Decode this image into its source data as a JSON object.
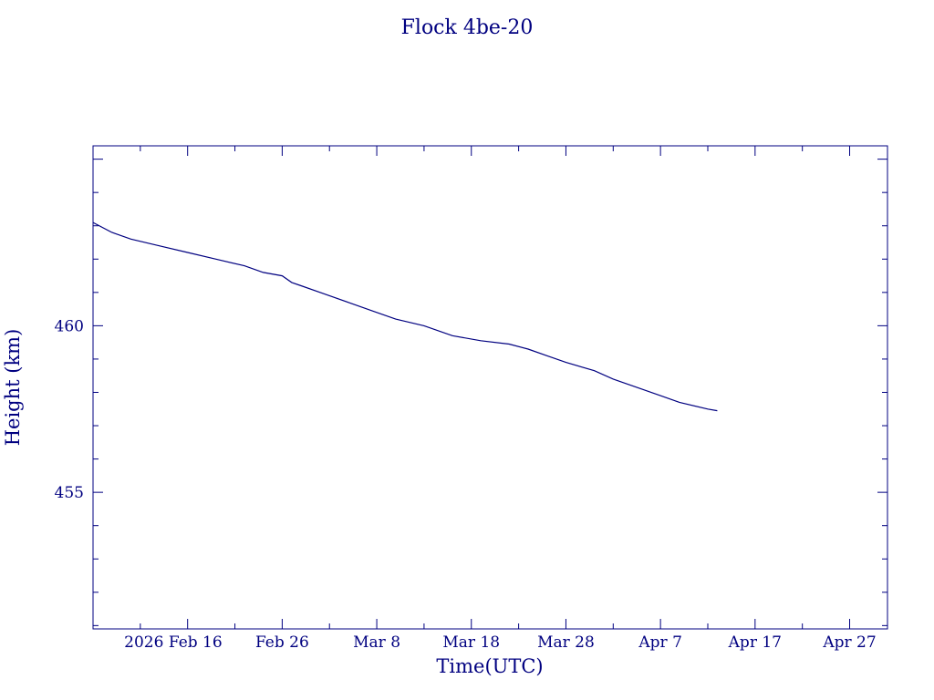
{
  "chart_data": {
    "type": "line",
    "title": "Flock 4be-20",
    "xlabel": "Time(UTC)",
    "ylabel": "Height (km)",
    "x_ticks": [
      "2026 Feb 16",
      "Feb 26",
      "Mar  8",
      "Mar 18",
      "Mar 28",
      "Apr  7",
      "Apr 17",
      "Apr 27"
    ],
    "y_ticks": [
      455,
      460
    ],
    "xlim": [
      "2026-02-06",
      "2026-05-01"
    ],
    "ylim": [
      450.9,
      465.4
    ],
    "grid": false,
    "color": "#000080",
    "series": [
      {
        "x": [
          "2026-02-06",
          "2026-02-08",
          "2026-02-10",
          "2026-02-13",
          "2026-02-16",
          "2026-02-19",
          "2026-02-22",
          "2026-02-24",
          "2026-02-26",
          "2026-02-27",
          "2026-02-28",
          "2026-03-02",
          "2026-03-05",
          "2026-03-08",
          "2026-03-10",
          "2026-03-13",
          "2026-03-16",
          "2026-03-19",
          "2026-03-22",
          "2026-03-24",
          "2026-03-26",
          "2026-03-28",
          "2026-03-31",
          "2026-04-02",
          "2026-04-05",
          "2026-04-07",
          "2026-04-09",
          "2026-04-12",
          "2026-04-13"
        ],
        "y": [
          463.1,
          462.8,
          462.6,
          462.4,
          462.2,
          462.0,
          461.8,
          461.6,
          461.5,
          461.3,
          461.2,
          461.0,
          460.7,
          460.4,
          460.2,
          460.0,
          459.7,
          459.55,
          459.45,
          459.3,
          459.1,
          458.9,
          458.65,
          458.4,
          458.1,
          457.9,
          457.7,
          457.5,
          457.45
        ]
      }
    ]
  }
}
